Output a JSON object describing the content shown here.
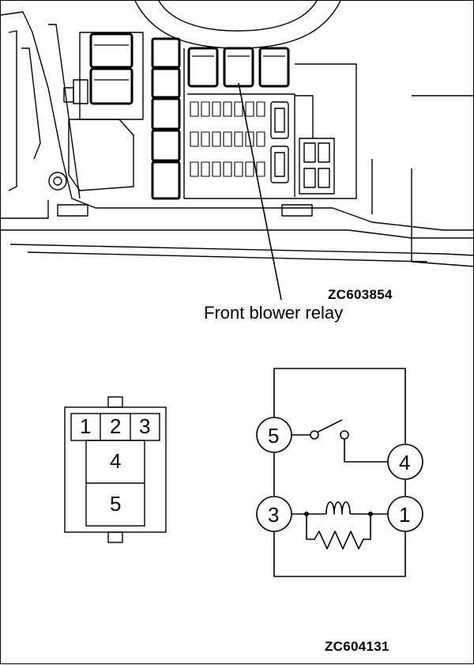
{
  "figure_top": {
    "code": "ZC603854",
    "callout": "Front blower relay"
  },
  "connector": {
    "top_row_pins": [
      "1",
      "2",
      "3"
    ],
    "lower_pins": [
      "4",
      "5"
    ]
  },
  "circuit": {
    "terminals": [
      "5",
      "4",
      "3",
      "1"
    ]
  },
  "figure_bottom": {
    "code": "ZC604131"
  }
}
